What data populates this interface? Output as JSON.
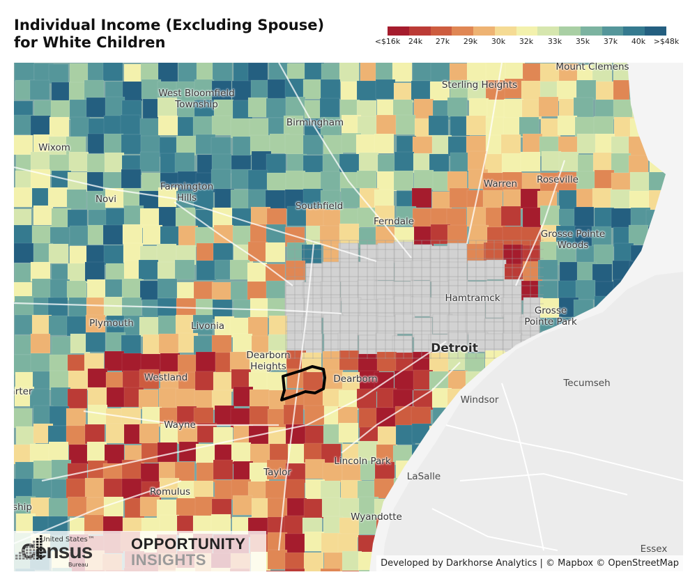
{
  "title": {
    "line1": "Individual Income (Excluding Spouse)",
    "line2": "for White Children"
  },
  "legend": {
    "colors": [
      "#a51c2d",
      "#bb3b36",
      "#cd5c3f",
      "#e08754",
      "#eeb373",
      "#f5db94",
      "#f3f1ad",
      "#d6e6ae",
      "#a9cfa4",
      "#7cb3a0",
      "#55969a",
      "#357a8f",
      "#245f80"
    ],
    "ticks": [
      "<$16k",
      "24k",
      "27k",
      "29k",
      "30k",
      "32k",
      "33k",
      "35k",
      "37k",
      "40k",
      ">$48k"
    ]
  },
  "palette": {
    "no_data": "#d2d2d2",
    "water": "#f4f4f4",
    "canada_land": "#ececec",
    "selected_outline": "#000000"
  },
  "places": [
    {
      "name": "Mount Clemens",
      "kind": "city"
    },
    {
      "name": "West Bloomfield\nTownship",
      "kind": "city"
    },
    {
      "name": "Sterling Heights",
      "kind": "city"
    },
    {
      "name": "Birmingham",
      "kind": "city"
    },
    {
      "name": "Wixom",
      "kind": "city"
    },
    {
      "name": "Farmington\nHills",
      "kind": "city"
    },
    {
      "name": "Warren",
      "kind": "city"
    },
    {
      "name": "Roseville",
      "kind": "city"
    },
    {
      "name": "Novi",
      "kind": "city"
    },
    {
      "name": "Southfield",
      "kind": "city"
    },
    {
      "name": "Ferndale",
      "kind": "city"
    },
    {
      "name": "Grosse Pointe\nWoods",
      "kind": "city"
    },
    {
      "name": "Hamtramck",
      "kind": "city"
    },
    {
      "name": "Grosse\nPointe Park",
      "kind": "city"
    },
    {
      "name": "Plymouth",
      "kind": "city"
    },
    {
      "name": "Livonia",
      "kind": "city"
    },
    {
      "name": "Detroit",
      "kind": "major"
    },
    {
      "name": "Dearborn\nHeights",
      "kind": "city"
    },
    {
      "name": "Westland",
      "kind": "city"
    },
    {
      "name": "Dearborn",
      "kind": "city"
    },
    {
      "name": "Tecumseh",
      "kind": "water"
    },
    {
      "name": "Windsor",
      "kind": "water"
    },
    {
      "name": "arter",
      "kind": "city"
    },
    {
      "name": "Wayne",
      "kind": "city"
    },
    {
      "name": "Lincoln Park",
      "kind": "city"
    },
    {
      "name": "Taylor",
      "kind": "city"
    },
    {
      "name": "LaSalle",
      "kind": "water"
    },
    {
      "name": "Romulus",
      "kind": "city"
    },
    {
      "name": "ship",
      "kind": "city"
    },
    {
      "name": "Wyandotte",
      "kind": "city"
    },
    {
      "name": "Essex",
      "kind": "water"
    }
  ],
  "logos": {
    "census_top": "United States™",
    "census_main": "Census",
    "census_sub": "Bureau",
    "oi_line1": "OPPORTUNITY",
    "oi_line2": "INSIGHTS"
  },
  "attribution": "Developed by Darkhorse Analytics | © Mapbox © OpenStreetMap"
}
